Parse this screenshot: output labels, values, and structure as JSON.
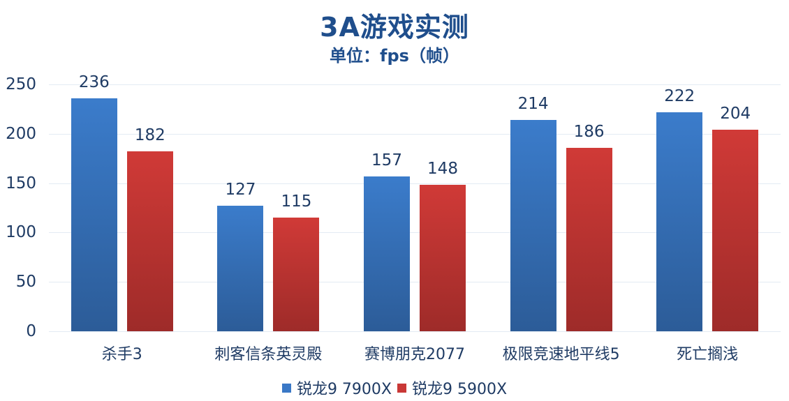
{
  "chart_data": {
    "type": "bar",
    "title": "3A游戏实测",
    "subtitle": "单位：fps（帧）",
    "xlabel": "",
    "ylabel": "",
    "ylim": [
      0,
      250
    ],
    "yticks": [
      "0",
      "50",
      "100",
      "150",
      "200",
      "250"
    ],
    "grid": true,
    "legend_position": "bottom",
    "categories": [
      "杀手3",
      "刺客信条英灵殿",
      "赛博朋克2077",
      "极限竞速地平线5",
      "死亡搁浅"
    ],
    "series": [
      {
        "name": "锐龙9 7900X",
        "color": "#3a78c6",
        "values": [
          236,
          127,
          157,
          214,
          222
        ]
      },
      {
        "name": "锐龙9 5900X",
        "color": "#c93836",
        "values": [
          182,
          115,
          148,
          186,
          204
        ]
      }
    ]
  }
}
